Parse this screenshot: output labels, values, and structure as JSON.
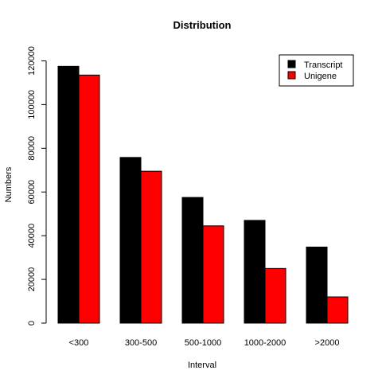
{
  "chart_data": {
    "type": "bar",
    "title": "Distribution",
    "xlabel": "Interval",
    "ylabel": "Numbers",
    "categories": [
      "<300",
      "300-500",
      "500-1000",
      "1000-2000",
      ">2000"
    ],
    "series": [
      {
        "name": "Transcript",
        "color": "#000000",
        "values": [
          117500,
          75800,
          57500,
          47000,
          34800
        ]
      },
      {
        "name": "Unigene",
        "color": "#ff0000",
        "values": [
          113500,
          69500,
          44500,
          25000,
          12000
        ]
      }
    ],
    "ylim": [
      0,
      126000
    ],
    "yticks": [
      0,
      20000,
      40000,
      60000,
      80000,
      100000,
      120000
    ],
    "ytick_labels": [
      "0",
      "20000",
      "40000",
      "60000",
      "80000",
      "100000",
      "120000"
    ],
    "grid": false,
    "legend_position": "top-right"
  }
}
